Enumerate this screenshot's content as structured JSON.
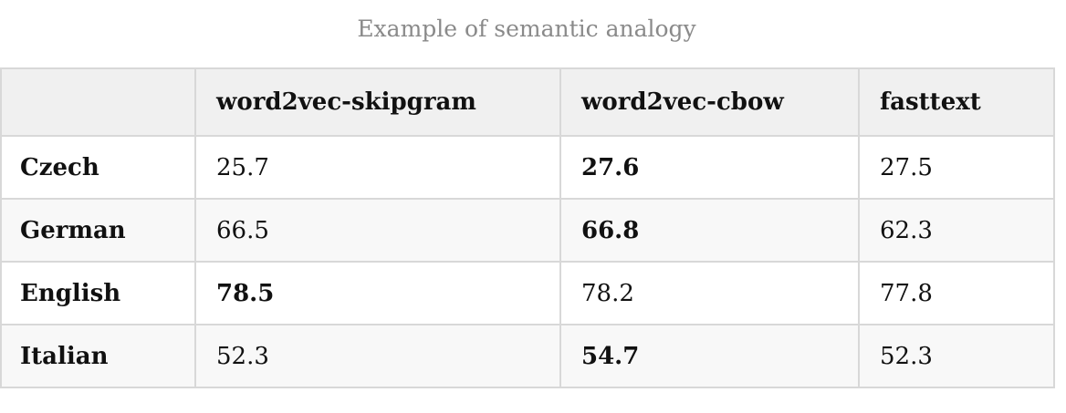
{
  "caption": "Example of semantic analogy",
  "table": {
    "columns": [
      "",
      "word2vec-skipgram",
      "word2vec-cbow",
      "fasttext"
    ],
    "rows": [
      {
        "language": "Czech",
        "values": [
          "25.7",
          "27.6",
          "27.5"
        ],
        "best": [
          false,
          true,
          false
        ]
      },
      {
        "language": "German",
        "values": [
          "66.5",
          "66.8",
          "62.3"
        ],
        "best": [
          false,
          true,
          false
        ]
      },
      {
        "language": "English",
        "values": [
          "78.5",
          "78.2",
          "77.8"
        ],
        "best": [
          true,
          false,
          false
        ]
      },
      {
        "language": "Italian",
        "values": [
          "52.3",
          "54.7",
          "52.3"
        ],
        "best": [
          false,
          true,
          false
        ]
      }
    ]
  }
}
